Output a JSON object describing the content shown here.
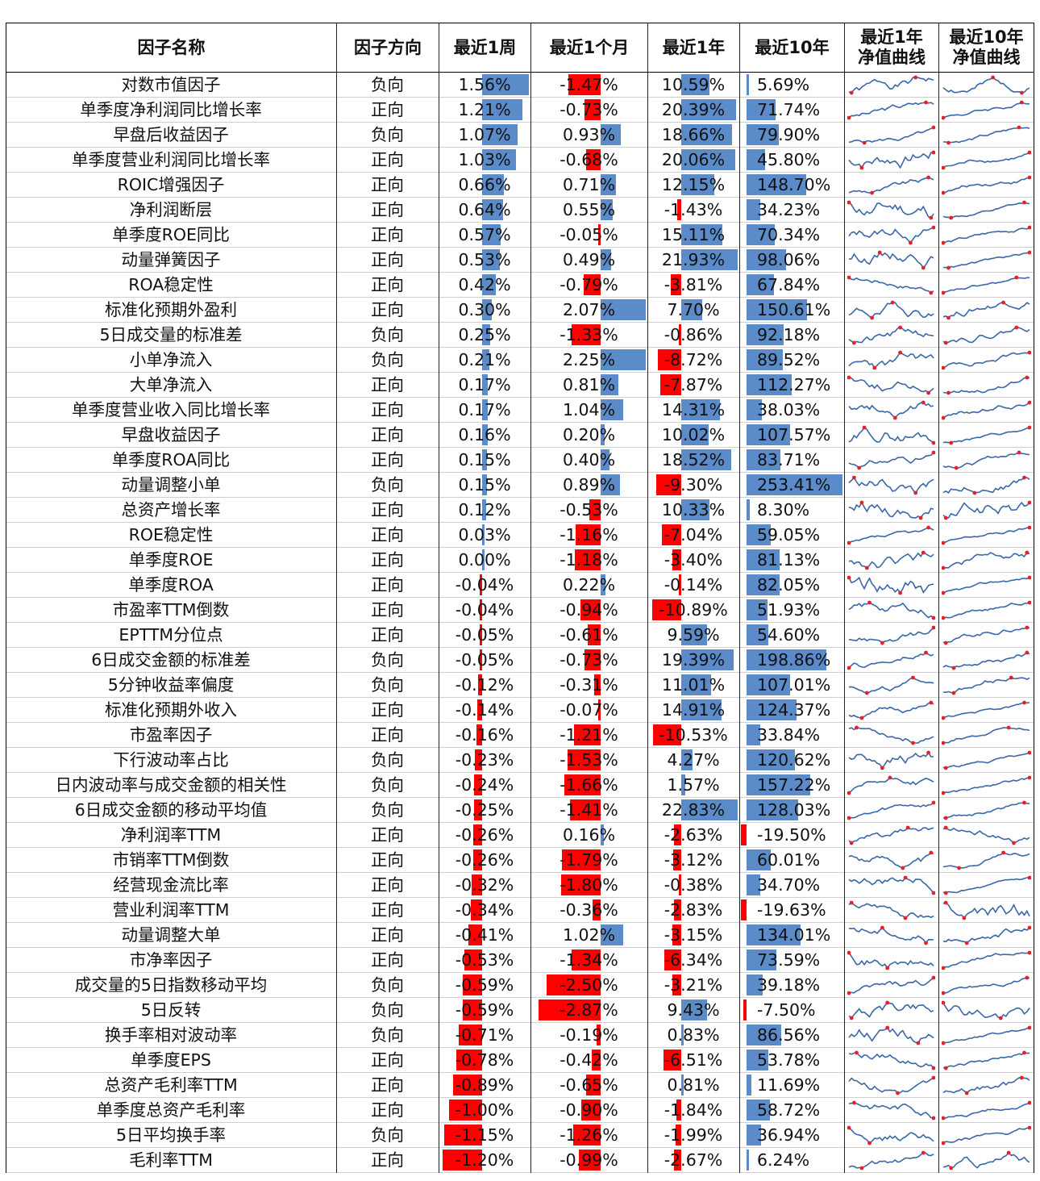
{
  "headers": {
    "name": "因子名称",
    "direction": "因子方向",
    "w1": "最近1周",
    "m1": "最近1个月",
    "y1": "最近1年",
    "y10": "最近10年",
    "curve1": [
      "最近1年",
      "净值曲线"
    ],
    "curve10": [
      "最近10年",
      "净值曲线"
    ]
  },
  "colors": {
    "positive": "#5b8bc9",
    "negative": "#ff0000",
    "line": "#3a68a8",
    "marker": "#e8202a"
  },
  "rows": [
    {
      "name": "对数市值因子",
      "direction": "负向",
      "w1": "1.56%",
      "m1": "-1.47%",
      "y1": "10.59%",
      "y10": "5.69%"
    },
    {
      "name": "单季度净利润同比增长率",
      "direction": "正向",
      "w1": "1.21%",
      "m1": "-0.73%",
      "y1": "20.39%",
      "y10": "71.74%"
    },
    {
      "name": "早盘后收益因子",
      "direction": "负向",
      "w1": "1.07%",
      "m1": "0.93%",
      "y1": "18.66%",
      "y10": "79.90%"
    },
    {
      "name": "单季度营业利润同比增长率",
      "direction": "正向",
      "w1": "1.03%",
      "m1": "-0.68%",
      "y1": "20.06%",
      "y10": "45.80%"
    },
    {
      "name": "ROIC增强因子",
      "direction": "正向",
      "w1": "0.66%",
      "m1": "0.71%",
      "y1": "12.15%",
      "y10": "148.70%"
    },
    {
      "name": "净利润断层",
      "direction": "正向",
      "w1": "0.64%",
      "m1": "0.55%",
      "y1": "-1.43%",
      "y10": "34.23%"
    },
    {
      "name": "单季度ROE同比",
      "direction": "正向",
      "w1": "0.57%",
      "m1": "-0.05%",
      "y1": "15.11%",
      "y10": "70.34%"
    },
    {
      "name": "动量弹簧因子",
      "direction": "正向",
      "w1": "0.53%",
      "m1": "0.49%",
      "y1": "21.93%",
      "y10": "98.06%"
    },
    {
      "name": "ROA稳定性",
      "direction": "正向",
      "w1": "0.42%",
      "m1": "-0.79%",
      "y1": "-3.81%",
      "y10": "67.84%"
    },
    {
      "name": "标准化预期外盈利",
      "direction": "正向",
      "w1": "0.30%",
      "m1": "2.07%",
      "y1": "7.70%",
      "y10": "150.61%"
    },
    {
      "name": "5日成交量的标准差",
      "direction": "负向",
      "w1": "0.25%",
      "m1": "-1.33%",
      "y1": "-0.86%",
      "y10": "92.18%"
    },
    {
      "name": "小单净流入",
      "direction": "负向",
      "w1": "0.21%",
      "m1": "2.25%",
      "y1": "-8.72%",
      "y10": "89.52%"
    },
    {
      "name": "大单净流入",
      "direction": "正向",
      "w1": "0.17%",
      "m1": "0.81%",
      "y1": "-7.87%",
      "y10": "112.27%"
    },
    {
      "name": "单季度营业收入同比增长率",
      "direction": "正向",
      "w1": "0.17%",
      "m1": "1.04%",
      "y1": "14.31%",
      "y10": "38.03%"
    },
    {
      "name": "早盘收益因子",
      "direction": "正向",
      "w1": "0.16%",
      "m1": "0.20%",
      "y1": "10.02%",
      "y10": "107.57%"
    },
    {
      "name": "单季度ROA同比",
      "direction": "正向",
      "w1": "0.15%",
      "m1": "0.40%",
      "y1": "18.52%",
      "y10": "83.71%"
    },
    {
      "name": "动量调整小单",
      "direction": "负向",
      "w1": "0.15%",
      "m1": "0.89%",
      "y1": "-9.30%",
      "y10": "253.41%"
    },
    {
      "name": "总资产增长率",
      "direction": "正向",
      "w1": "0.12%",
      "m1": "-0.53%",
      "y1": "10.33%",
      "y10": "8.30%"
    },
    {
      "name": "ROE稳定性",
      "direction": "正向",
      "w1": "0.03%",
      "m1": "-1.16%",
      "y1": "-7.04%",
      "y10": "59.05%"
    },
    {
      "name": "单季度ROE",
      "direction": "正向",
      "w1": "0.00%",
      "m1": "-1.18%",
      "y1": "-3.40%",
      "y10": "81.13%"
    },
    {
      "name": "单季度ROA",
      "direction": "正向",
      "w1": "-0.04%",
      "m1": "0.22%",
      "y1": "-0.14%",
      "y10": "82.05%"
    },
    {
      "name": "市盈率TTM倒数",
      "direction": "正向",
      "w1": "-0.04%",
      "m1": "-0.94%",
      "y1": "-10.89%",
      "y10": "51.93%"
    },
    {
      "name": "EPTTM分位点",
      "direction": "正向",
      "w1": "-0.05%",
      "m1": "-0.61%",
      "y1": "9.59%",
      "y10": "54.60%"
    },
    {
      "name": "6日成交金额的标准差",
      "direction": "负向",
      "w1": "-0.05%",
      "m1": "-0.73%",
      "y1": "19.39%",
      "y10": "198.86%"
    },
    {
      "name": "5分钟收益率偏度",
      "direction": "负向",
      "w1": "-0.12%",
      "m1": "-0.31%",
      "y1": "11.01%",
      "y10": "107.01%"
    },
    {
      "name": "标准化预期外收入",
      "direction": "正向",
      "w1": "-0.14%",
      "m1": "-0.07%",
      "y1": "14.91%",
      "y10": "124.37%"
    },
    {
      "name": "市盈率因子",
      "direction": "正向",
      "w1": "-0.16%",
      "m1": "-1.21%",
      "y1": "-10.53%",
      "y10": "33.84%"
    },
    {
      "name": "下行波动率占比",
      "direction": "负向",
      "w1": "-0.23%",
      "m1": "-1.53%",
      "y1": "4.27%",
      "y10": "120.62%"
    },
    {
      "name": "日内波动率与成交金额的相关性",
      "direction": "负向",
      "w1": "-0.24%",
      "m1": "-1.66%",
      "y1": "1.57%",
      "y10": "157.22%"
    },
    {
      "name": "6日成交金额的移动平均值",
      "direction": "负向",
      "w1": "-0.25%",
      "m1": "-1.41%",
      "y1": "22.83%",
      "y10": "128.03%"
    },
    {
      "name": "净利润率TTM",
      "direction": "正向",
      "w1": "-0.26%",
      "m1": "0.16%",
      "y1": "-2.63%",
      "y10": "-19.50%"
    },
    {
      "name": "市销率TTM倒数",
      "direction": "正向",
      "w1": "-0.26%",
      "m1": "-1.79%",
      "y1": "-3.12%",
      "y10": "60.01%"
    },
    {
      "name": "经营现金流比率",
      "direction": "正向",
      "w1": "-0.32%",
      "m1": "-1.80%",
      "y1": "-0.38%",
      "y10": "34.70%"
    },
    {
      "name": "营业利润率TTM",
      "direction": "正向",
      "w1": "-0.34%",
      "m1": "-0.36%",
      "y1": "-2.83%",
      "y10": "-19.63%"
    },
    {
      "name": "动量调整大单",
      "direction": "正向",
      "w1": "-0.41%",
      "m1": "1.02%",
      "y1": "-3.15%",
      "y10": "134.01%"
    },
    {
      "name": "市净率因子",
      "direction": "正向",
      "w1": "-0.53%",
      "m1": "-1.34%",
      "y1": "-6.34%",
      "y10": "73.59%"
    },
    {
      "name": "成交量的5日指数移动平均",
      "direction": "负向",
      "w1": "-0.59%",
      "m1": "-2.50%",
      "y1": "-3.21%",
      "y10": "39.18%"
    },
    {
      "name": "5日反转",
      "direction": "负向",
      "w1": "-0.59%",
      "m1": "-2.87%",
      "y1": "9.43%",
      "y10": "-7.50%"
    },
    {
      "name": "换手率相对波动率",
      "direction": "负向",
      "w1": "-0.71%",
      "m1": "-0.19%",
      "y1": "0.83%",
      "y10": "86.56%"
    },
    {
      "name": "单季度EPS",
      "direction": "正向",
      "w1": "-0.78%",
      "m1": "-0.42%",
      "y1": "-6.51%",
      "y10": "53.78%"
    },
    {
      "name": "总资产毛利率TTM",
      "direction": "正向",
      "w1": "-0.89%",
      "m1": "-0.65%",
      "y1": "0.81%",
      "y10": "11.69%"
    },
    {
      "name": "单季度总资产毛利率",
      "direction": "正向",
      "w1": "-1.00%",
      "m1": "-0.90%",
      "y1": "-1.84%",
      "y10": "58.72%"
    },
    {
      "name": "5日平均换手率",
      "direction": "负向",
      "w1": "-1.15%",
      "m1": "-1.26%",
      "y1": "-1.99%",
      "y10": "36.94%"
    },
    {
      "name": "毛利率TTM",
      "direction": "正向",
      "w1": "-1.20%",
      "m1": "-0.99%",
      "y1": "-2.67%",
      "y10": "6.24%"
    }
  ]
}
